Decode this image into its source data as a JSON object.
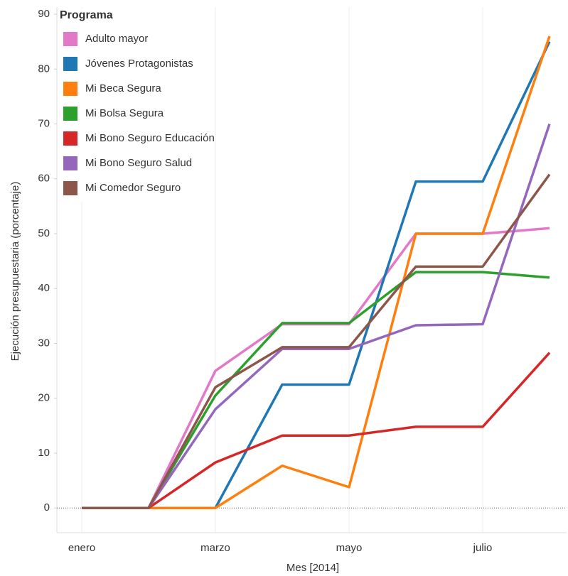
{
  "chart_data": {
    "type": "line",
    "x_label": "Mes [2014]",
    "y_label": "Ejecución presupuestaria (porcentaje)",
    "legend_title": "Programa",
    "legend": "top-left",
    "categories": [
      "enero",
      null,
      "marzo",
      null,
      "mayo",
      null,
      "julio",
      null
    ],
    "ylim": [
      -4.5,
      91.3
    ],
    "yticks": [
      0,
      10,
      20,
      30,
      40,
      50,
      60,
      70,
      80,
      90
    ],
    "series": [
      {
        "name": "Adulto mayor",
        "color": "#e377c8",
        "values": [
          0,
          0,
          25,
          33.5,
          33.5,
          50,
          50,
          51
        ]
      },
      {
        "name": "Jóvenes Protagonistas",
        "color": "#1f77b4",
        "values": [
          0,
          0,
          0,
          22.5,
          22.5,
          59.5,
          59.5,
          85
        ]
      },
      {
        "name": "Mi Beca Segura",
        "color": "#ff7f0e",
        "values": [
          0,
          0,
          0,
          7.7,
          3.8,
          50,
          50,
          86
        ]
      },
      {
        "name": "Mi Bolsa Segura",
        "color": "#2ca02c",
        "values": [
          0,
          0,
          20.5,
          33.7,
          33.7,
          43,
          43,
          42
        ]
      },
      {
        "name": "Mi Bono Seguro Educación",
        "color": "#d62728",
        "values": [
          0,
          0,
          8.3,
          13.2,
          13.2,
          14.8,
          14.8,
          28.3
        ]
      },
      {
        "name": "Mi Bono Seguro Salud",
        "color": "#9467bd",
        "values": [
          0,
          0,
          18,
          29,
          29,
          33.3,
          33.5,
          70
        ]
      },
      {
        "name": "Mi Comedor Seguro",
        "color": "#8c564b",
        "values": [
          0,
          0,
          22,
          29.3,
          29.3,
          44,
          44,
          60.8
        ]
      }
    ]
  }
}
